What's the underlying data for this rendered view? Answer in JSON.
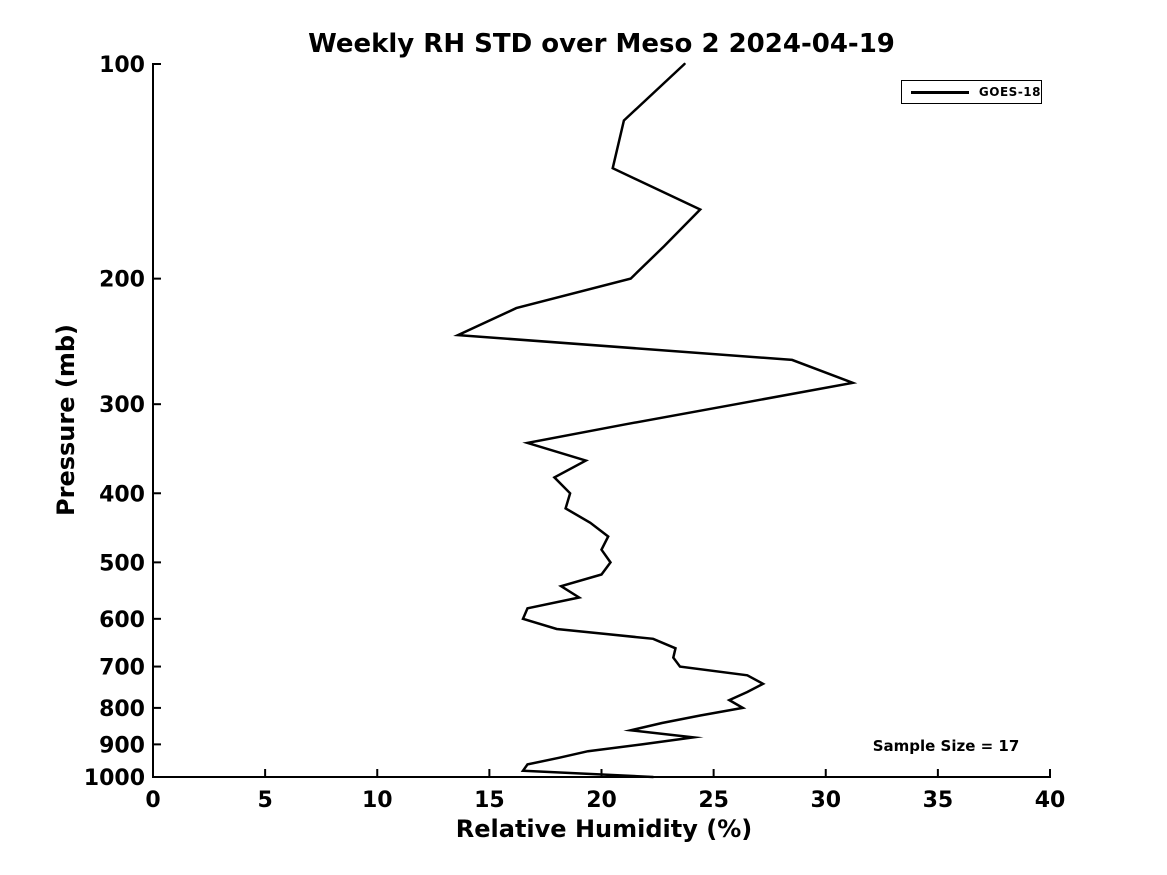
{
  "figure": {
    "background": "#ffffff",
    "line_color": "#000000",
    "annotation": "Sample Size = 17"
  },
  "legend": {
    "position": "top-right",
    "entries": [
      {
        "label": "GOES-18",
        "color": "#000000"
      }
    ]
  },
  "chart_data": {
    "type": "line",
    "title": "Weekly RH STD over Meso 2 2024-04-19",
    "xlabel": "Relative Humidity (%)",
    "ylabel": "Pressure (mb)",
    "xlim": [
      0,
      40
    ],
    "x_ticks": [
      0,
      5,
      10,
      15,
      20,
      25,
      30,
      35,
      40
    ],
    "ylim": [
      100,
      1000
    ],
    "y_ticks": [
      100,
      200,
      300,
      400,
      500,
      600,
      700,
      800,
      900,
      1000
    ],
    "y_scale": "log",
    "y_axis_inverted": true,
    "grid": false,
    "legend_position": "top-right",
    "annotations": [
      "Sample Size = 17"
    ],
    "series": [
      {
        "name": "GOES-18",
        "color": "#000000",
        "y_pressure_mb": [
          100,
          120,
          140,
          160,
          180,
          200,
          220,
          240,
          260,
          280,
          300,
          320,
          340,
          360,
          380,
          400,
          420,
          440,
          460,
          480,
          500,
          520,
          540,
          560,
          580,
          600,
          620,
          640,
          660,
          680,
          700,
          720,
          740,
          760,
          780,
          800,
          820,
          840,
          860,
          880,
          900,
          920,
          940,
          960,
          980,
          1000
        ],
        "x_rh_percent": [
          23.7,
          21.0,
          20.5,
          24.4,
          22.8,
          21.3,
          16.2,
          13.6,
          28.5,
          31.2,
          26.0,
          21.1,
          16.7,
          19.3,
          17.9,
          18.6,
          18.4,
          19.5,
          20.3,
          20.0,
          20.4,
          20.0,
          18.2,
          19.0,
          16.7,
          16.5,
          18.0,
          22.3,
          23.3,
          23.2,
          23.5,
          26.5,
          27.2,
          26.5,
          25.7,
          26.3,
          24.4,
          22.7,
          21.3,
          24.1,
          21.8,
          19.4,
          18.1,
          16.7,
          16.5,
          22.3
        ]
      }
    ]
  }
}
